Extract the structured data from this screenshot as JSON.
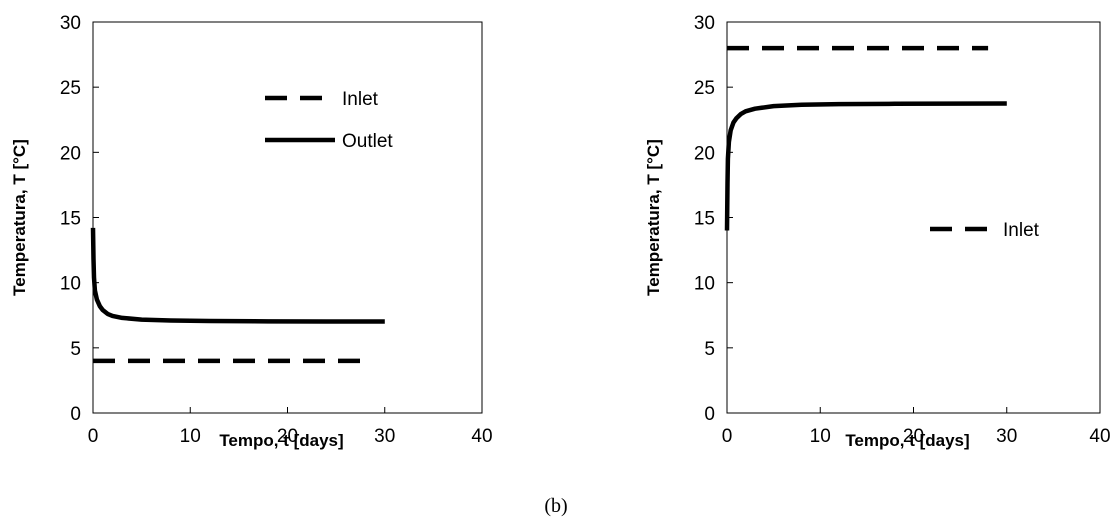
{
  "figure": {
    "caption": "(b)"
  },
  "chart_data": [
    {
      "type": "line",
      "xlabel": "Tempo, t [days]",
      "ylabel": "Temperatura, T [°C]",
      "xlim": [
        0,
        40
      ],
      "ylim": [
        0,
        30
      ],
      "xticks": [
        0,
        10,
        20,
        30,
        40
      ],
      "yticks": [
        0,
        5,
        10,
        15,
        20,
        25,
        30
      ],
      "grid": false,
      "legend": {
        "position": "top-right",
        "entries": [
          "Inlet",
          "Outlet"
        ]
      },
      "series": [
        {
          "name": "Inlet",
          "style": "dashed",
          "color": "#000000",
          "x": [
            0,
            28
          ],
          "y": [
            4,
            4
          ]
        },
        {
          "name": "Outlet",
          "style": "solid",
          "color": "#000000",
          "x": [
            0,
            0.05,
            0.1,
            0.2,
            0.4,
            0.7,
            1,
            1.5,
            2,
            3,
            5,
            8,
            12,
            18,
            24,
            30
          ],
          "y": [
            14.2,
            11.8,
            10.4,
            9.4,
            8.7,
            8.2,
            7.9,
            7.6,
            7.45,
            7.3,
            7.17,
            7.1,
            7.06,
            7.03,
            7.02,
            7.02
          ]
        }
      ]
    },
    {
      "type": "line",
      "xlabel": "Tempo, t [days]",
      "ylabel": "Temperatura, T [°C]",
      "xlim": [
        0,
        40
      ],
      "ylim": [
        0,
        30
      ],
      "xticks": [
        0,
        10,
        20,
        30,
        40
      ],
      "yticks": [
        0,
        5,
        10,
        15,
        20,
        25,
        30
      ],
      "grid": false,
      "legend": {
        "position": "center-right",
        "entries": [
          "Inlet"
        ]
      },
      "series": [
        {
          "name": "Inlet",
          "style": "dashed",
          "color": "#000000",
          "x": [
            0,
            28
          ],
          "y": [
            28,
            28
          ]
        },
        {
          "style": "solid",
          "color": "#000000",
          "x": [
            0,
            0.05,
            0.1,
            0.2,
            0.4,
            0.7,
            1,
            1.5,
            2,
            3,
            5,
            8,
            12,
            18,
            24,
            30
          ],
          "y": [
            14,
            17.6,
            19.5,
            20.8,
            21.7,
            22.3,
            22.6,
            22.95,
            23.15,
            23.35,
            23.55,
            23.65,
            23.7,
            23.72,
            23.74,
            23.75
          ]
        }
      ]
    }
  ]
}
